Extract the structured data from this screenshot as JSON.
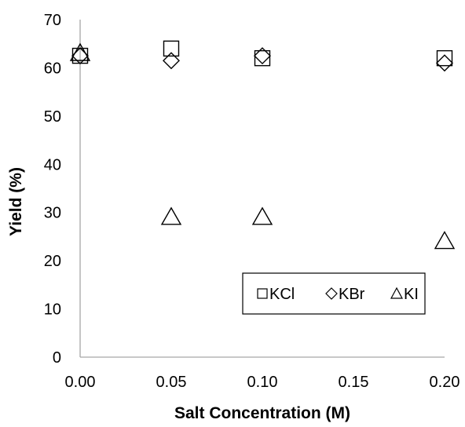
{
  "chart_data": {
    "type": "scatter",
    "title": "",
    "xlabel": "Salt Concentration (M)",
    "ylabel": "Yield (%)",
    "xlim": [
      0.0,
      0.2
    ],
    "ylim": [
      0,
      70
    ],
    "x_ticks": [
      "0.00",
      "0.05",
      "0.10",
      "0.15",
      "0.20"
    ],
    "y_ticks": [
      "0",
      "10",
      "20",
      "30",
      "40",
      "50",
      "60",
      "70"
    ],
    "grid": false,
    "legend_position": "lower-right",
    "series": [
      {
        "name": "KCl",
        "marker": "square",
        "x": [
          0.0,
          0.05,
          0.1,
          0.2
        ],
        "y": [
          62.5,
          64,
          62,
          62
        ]
      },
      {
        "name": "KBr",
        "marker": "diamond",
        "x": [
          0.0,
          0.05,
          0.1,
          0.2
        ],
        "y": [
          62.5,
          61.5,
          62.5,
          61
        ]
      },
      {
        "name": "KI",
        "marker": "triangle",
        "x": [
          0.0,
          0.05,
          0.1,
          0.2
        ],
        "y": [
          63,
          29,
          29,
          24
        ]
      }
    ]
  }
}
